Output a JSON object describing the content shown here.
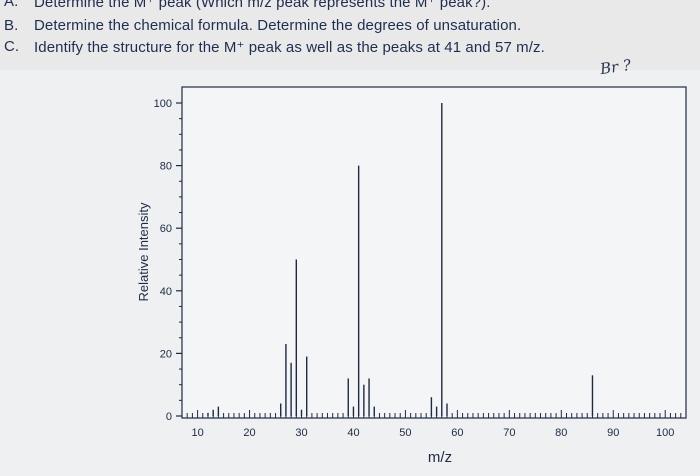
{
  "questions": [
    {
      "letter": "A.",
      "text": "Determine the M⁺ peak (Which m/z peak represents the M⁺ peak?)."
    },
    {
      "letter": "B.",
      "text": "Determine the chemical formula. Determine the degrees of unsaturation."
    },
    {
      "letter": "C.",
      "text": "Identify the structure for the M⁺ peak as well as the peaks at 41 and 57 m/z."
    }
  ],
  "handwritten_note": "Br ?",
  "colors": {
    "ink": "#1e2a44",
    "plot_background": "#f4f5f6",
    "page_background": "#e9e9ea"
  },
  "chart_data": {
    "type": "bar",
    "title": "",
    "xlabel": "m/z",
    "ylabel": "Relative Intensity",
    "xlim": [
      7,
      104
    ],
    "ylim": [
      0,
      100
    ],
    "x_ticks": [
      10,
      20,
      30,
      40,
      50,
      60,
      70,
      80,
      90,
      100
    ],
    "y_ticks": [
      0,
      20,
      40,
      60,
      80,
      100
    ],
    "grid": false,
    "peaks": [
      {
        "mz": 12,
        "intensity": 1
      },
      {
        "mz": 13,
        "intensity": 2
      },
      {
        "mz": 14,
        "intensity": 3
      },
      {
        "mz": 26,
        "intensity": 4
      },
      {
        "mz": 27,
        "intensity": 23
      },
      {
        "mz": 28,
        "intensity": 17
      },
      {
        "mz": 29,
        "intensity": 50
      },
      {
        "mz": 30,
        "intensity": 2
      },
      {
        "mz": 31,
        "intensity": 19
      },
      {
        "mz": 39,
        "intensity": 12
      },
      {
        "mz": 40,
        "intensity": 3
      },
      {
        "mz": 41,
        "intensity": 80
      },
      {
        "mz": 42,
        "intensity": 10
      },
      {
        "mz": 43,
        "intensity": 12
      },
      {
        "mz": 44,
        "intensity": 3
      },
      {
        "mz": 55,
        "intensity": 6
      },
      {
        "mz": 56,
        "intensity": 3
      },
      {
        "mz": 57,
        "intensity": 100
      },
      {
        "mz": 58,
        "intensity": 4
      },
      {
        "mz": 86,
        "intensity": 13
      }
    ]
  }
}
